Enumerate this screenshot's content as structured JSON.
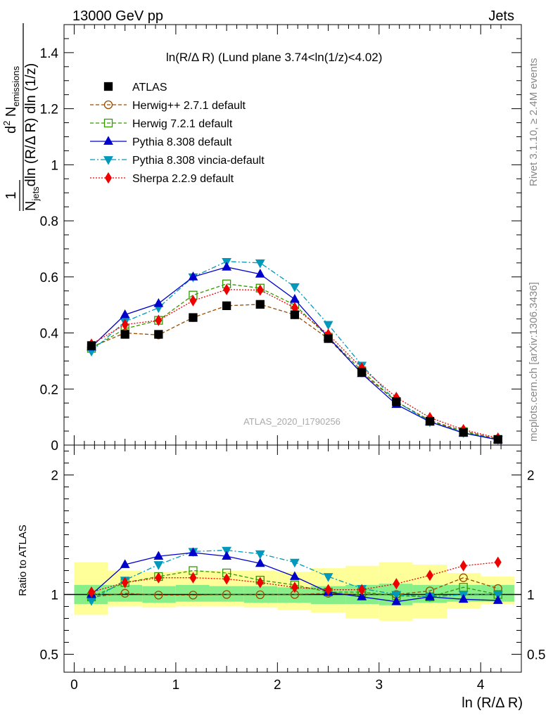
{
  "header": {
    "left": "13000 GeV pp",
    "right": "Jets"
  },
  "side_text": {
    "rivet": "Rivet 3.1.10, ≥ 2.4M events",
    "mcplots": "mcplots.cern.ch [arXiv:1306.3436]"
  },
  "watermark": "ATLAS_2020_I1790256",
  "chart_data": [
    {
      "type": "line",
      "title_main": "ln(R/Δ R)",
      "title_rest": "(Lund plane 3.74<ln(1/z)<4.02)",
      "ylabel": {
        "frac_num": "1",
        "frac_den_a": "N",
        "frac_den_sub": "jets",
        "frac_den_b": "dln (R/Δ R) dln (1/z)",
        "d2": "d",
        "d2_sup": "2",
        "nem": " N",
        "nem_sub": "emissions"
      },
      "xlim": [
        -0.1,
        4.4
      ],
      "ylim": [
        0,
        1.5
      ],
      "yticks": [
        {
          "v": 0.2,
          "label": "0.2"
        },
        {
          "v": 0.4,
          "label": "0.4"
        },
        {
          "v": 0.6,
          "label": "0.6"
        },
        {
          "v": 0.8,
          "label": "0.8"
        },
        {
          "v": 1.0,
          "label": "1"
        },
        {
          "v": 1.2,
          "label": "1.2"
        },
        {
          "v": 1.4,
          "label": "1.4"
        },
        {
          "v": 0.0,
          "label": "0"
        }
      ],
      "x": [
        0.17,
        0.5,
        0.83,
        1.17,
        1.5,
        1.83,
        2.17,
        2.5,
        2.83,
        3.17,
        3.5,
        3.83,
        4.17
      ],
      "series": [
        {
          "name": "ATLAS",
          "color": "#000000",
          "marker": "square",
          "dash": "none",
          "values": [
            0.355,
            0.395,
            0.395,
            0.455,
            0.497,
            0.502,
            0.465,
            0.38,
            0.26,
            0.155,
            0.085,
            0.045,
            0.02
          ]
        },
        {
          "name": "Herwig++ 2.7.1 default",
          "color": "#994c00",
          "marker": "circle-open",
          "dash": "5,3",
          "values": [
            0.35,
            0.4,
            0.393,
            0.455,
            0.497,
            0.502,
            0.465,
            0.38,
            0.258,
            0.155,
            0.088,
            0.05,
            0.022
          ]
        },
        {
          "name": "Herwig 7.2.1 default",
          "color": "#339900",
          "marker": "square-open",
          "dash": "5,3",
          "values": [
            0.345,
            0.415,
            0.445,
            0.535,
            0.575,
            0.56,
            0.5,
            0.385,
            0.265,
            0.155,
            0.085,
            0.048,
            0.02
          ]
        },
        {
          "name": "Pythia 8.308 default",
          "color": "#0000cc",
          "marker": "triangle-up",
          "dash": "none",
          "values": [
            0.35,
            0.465,
            0.505,
            0.6,
            0.635,
            0.61,
            0.52,
            0.385,
            0.255,
            0.145,
            0.083,
            0.043,
            0.019
          ]
        },
        {
          "name": "Pythia 8.308 vincia-default",
          "color": "#0099bb",
          "marker": "triangle-down",
          "dash": "7,3,2,3",
          "values": [
            0.335,
            0.44,
            0.49,
            0.6,
            0.655,
            0.65,
            0.565,
            0.43,
            0.285,
            0.155,
            0.083,
            0.045,
            0.02
          ]
        },
        {
          "name": "Sherpa 2.2.9 default",
          "color": "#ee0000",
          "marker": "diamond",
          "dash": "2,2",
          "values": [
            0.36,
            0.43,
            0.445,
            0.515,
            0.555,
            0.553,
            0.49,
            0.395,
            0.275,
            0.17,
            0.098,
            0.055,
            0.025
          ]
        }
      ]
    },
    {
      "type": "line",
      "xlabel": "ln (R/Δ R)",
      "ylabel": "Ratio to ATLAS",
      "xlim": [
        -0.1,
        4.4
      ],
      "ylim": [
        0.35,
        2.25
      ],
      "yticks": [
        {
          "v": 0.5,
          "label": "0.5"
        },
        {
          "v": 1.0,
          "label": "1"
        },
        {
          "v": 2.0,
          "label": "2"
        }
      ],
      "xticks": [
        {
          "v": 0,
          "label": "0"
        },
        {
          "v": 1,
          "label": "1"
        },
        {
          "v": 2,
          "label": "2"
        },
        {
          "v": 3,
          "label": "3"
        },
        {
          "v": 4,
          "label": "4"
        }
      ],
      "bins": [
        0,
        0.33,
        0.67,
        1.0,
        1.33,
        1.67,
        2.0,
        2.33,
        2.67,
        3.0,
        3.33,
        3.67,
        4.0,
        4.33
      ],
      "band_stat": [
        [
          0.92,
          1.08
        ],
        [
          0.94,
          1.08
        ],
        [
          0.93,
          1.07
        ],
        [
          0.94,
          1.08
        ],
        [
          0.94,
          1.07
        ],
        [
          0.93,
          1.07
        ],
        [
          0.93,
          1.06
        ],
        [
          0.92,
          1.07
        ],
        [
          0.92,
          1.08
        ],
        [
          0.91,
          1.09
        ],
        [
          0.93,
          1.08
        ],
        [
          0.94,
          1.08
        ],
        [
          0.94,
          1.08
        ]
      ],
      "band_total": [
        [
          0.83,
          1.27
        ],
        [
          0.9,
          1.2
        ],
        [
          0.89,
          1.19
        ],
        [
          0.9,
          1.2
        ],
        [
          0.9,
          1.2
        ],
        [
          0.89,
          1.2
        ],
        [
          0.87,
          1.19
        ],
        [
          0.85,
          1.22
        ],
        [
          0.8,
          1.24
        ],
        [
          0.78,
          1.27
        ],
        [
          0.8,
          1.25
        ],
        [
          0.88,
          1.18
        ],
        [
          0.92,
          1.15
        ]
      ],
      "reference": 1.0,
      "x": [
        0.17,
        0.5,
        0.83,
        1.17,
        1.5,
        1.83,
        2.17,
        2.5,
        2.83,
        3.17,
        3.5,
        3.83,
        4.17
      ],
      "series": [
        {
          "name": "Herwig++ 2.7.1 default",
          "color": "#994c00",
          "marker": "circle-open",
          "dash": "5,3",
          "values": [
            0.98,
            1.01,
            0.995,
            0.995,
            1.0,
            0.998,
            1.0,
            1.01,
            1.0,
            1.0,
            1.03,
            1.14,
            1.05
          ]
        },
        {
          "name": "Herwig 7.2.1 default",
          "color": "#339900",
          "marker": "square-open",
          "dash": "5,3",
          "values": [
            0.98,
            1.1,
            1.15,
            1.2,
            1.18,
            1.12,
            1.08,
            1.02,
            1.02,
            0.99,
            0.98,
            1.06,
            1.0
          ]
        },
        {
          "name": "Pythia 8.308 default",
          "color": "#0000cc",
          "marker": "triangle-up",
          "dash": "none",
          "values": [
            1.0,
            1.25,
            1.32,
            1.35,
            1.32,
            1.26,
            1.15,
            1.02,
            0.98,
            0.94,
            0.98,
            0.96,
            0.95
          ]
        },
        {
          "name": "Pythia 8.308 vincia-default",
          "color": "#0099bb",
          "marker": "triangle-down",
          "dash": "7,3,2,3",
          "values": [
            0.95,
            1.12,
            1.25,
            1.36,
            1.37,
            1.34,
            1.27,
            1.15,
            1.05,
            1.0,
            0.98,
            1.0,
            1.0
          ]
        },
        {
          "name": "Sherpa 2.2.9 default",
          "color": "#ee0000",
          "marker": "diamond",
          "dash": "2,2",
          "values": [
            1.02,
            1.1,
            1.14,
            1.14,
            1.13,
            1.1,
            1.06,
            1.04,
            1.04,
            1.09,
            1.16,
            1.24,
            1.27
          ]
        }
      ]
    }
  ]
}
